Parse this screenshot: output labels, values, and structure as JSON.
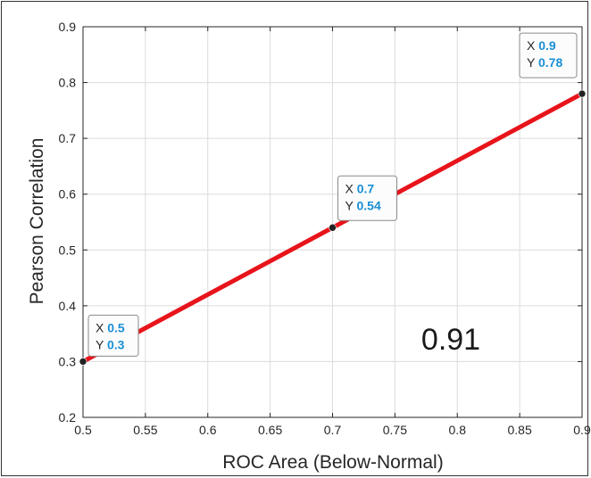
{
  "chart_data": {
    "type": "line",
    "xlabel": "ROC Area (Below-Normal)",
    "ylabel": "Pearson Correlation",
    "xlim": [
      0.5,
      0.9
    ],
    "ylim": [
      0.2,
      0.9
    ],
    "xticks": [
      "0.5",
      "0.55",
      "0.6",
      "0.65",
      "0.7",
      "0.75",
      "0.8",
      "0.85",
      "0.9"
    ],
    "yticks": [
      "0.2",
      "0.3",
      "0.4",
      "0.5",
      "0.6",
      "0.7",
      "0.8",
      "0.9"
    ],
    "grid": true,
    "series": [
      {
        "color": "#e8141b",
        "x": [
          0.5,
          0.7,
          0.9
        ],
        "y": [
          0.3,
          0.54,
          0.78
        ]
      }
    ],
    "datatips": [
      {
        "x_label": "X",
        "y_label": "Y",
        "x_value": "0.5",
        "y_value": "0.3",
        "x": 0.5,
        "y": 0.3
      },
      {
        "x_label": "X",
        "y_label": "Y",
        "x_value": "0.7",
        "y_value": "0.54",
        "x": 0.7,
        "y": 0.54
      },
      {
        "x_label": "X",
        "y_label": "Y",
        "x_value": "0.9",
        "y_value": "0.78",
        "x": 0.9,
        "y": 0.78
      }
    ],
    "annotation": "0.91",
    "colors": {
      "line": "#e8141b",
      "tip_value": "#1a8fd6",
      "marker": "#222222"
    }
  }
}
